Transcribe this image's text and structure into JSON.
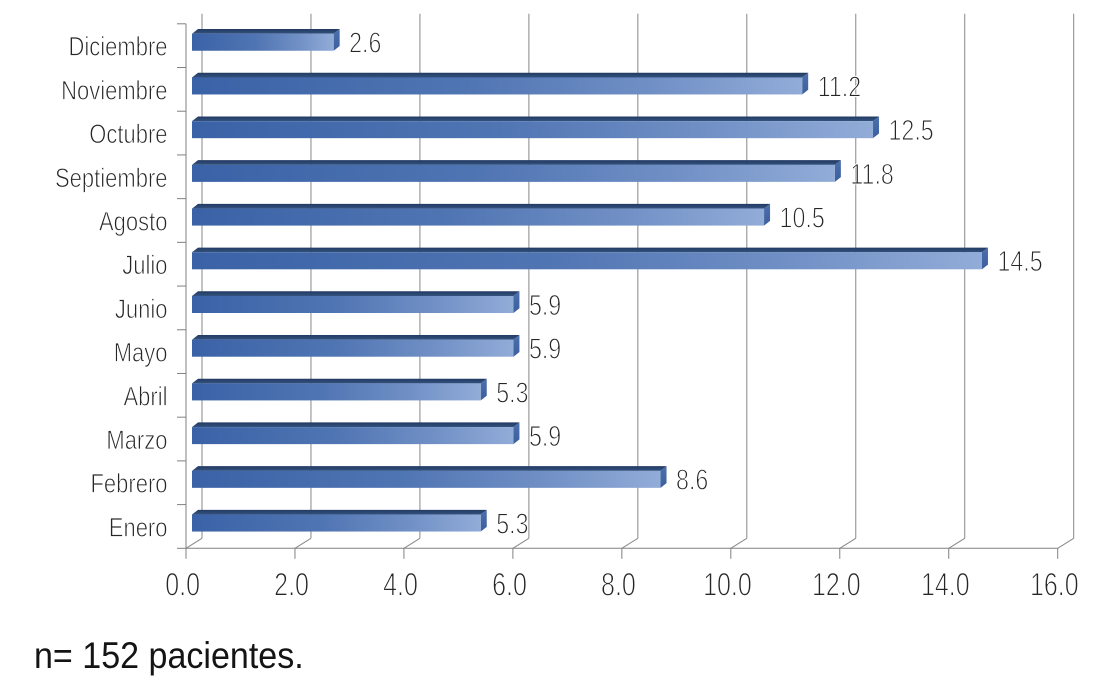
{
  "figure": {
    "background": "#ffffff"
  },
  "caption": {
    "text": "n= 152 pacientes."
  },
  "chart_data": {
    "type": "bar",
    "orientation": "horizontal",
    "style": "3d-oblique-bars",
    "title": "",
    "xlabel": "",
    "ylabel": "",
    "categories": [
      "Diciembre",
      "Noviembre",
      "Octubre",
      "Septiembre",
      "Agosto",
      "Julio",
      "Junio",
      "Mayo",
      "Abril",
      "Marzo",
      "Febrero",
      "Enero"
    ],
    "values": [
      2.6,
      11.2,
      12.5,
      11.8,
      10.5,
      14.5,
      5.9,
      5.9,
      5.3,
      5.9,
      8.6,
      5.3
    ],
    "value_labels": [
      "2.6",
      "11.2",
      "12.5",
      "11.8",
      "10.5",
      "14.5",
      "5.9",
      "5.9",
      "5.3",
      "5.9",
      "8.6",
      "5.3"
    ],
    "xlim": [
      0,
      16
    ],
    "xticks": [
      0,
      2,
      4,
      6,
      8,
      10,
      12,
      14,
      16
    ],
    "xtick_labels": [
      "0.0",
      "2.0",
      "4.0",
      "6.0",
      "8.0",
      "10.0",
      "12.0",
      "14.0",
      "16.0"
    ],
    "grid": true,
    "legend": false,
    "colors": {
      "bar_front_start": "#3a62a6",
      "bar_front_end": "#92acd8",
      "bar_top_back": "#223a62",
      "bar_top_front": "#33527f",
      "cap_top": "#4b70ad",
      "cap_bottom": "#3c5f9d",
      "gridline": "#878787",
      "axis": "#808080",
      "label_text": "#262626"
    }
  }
}
